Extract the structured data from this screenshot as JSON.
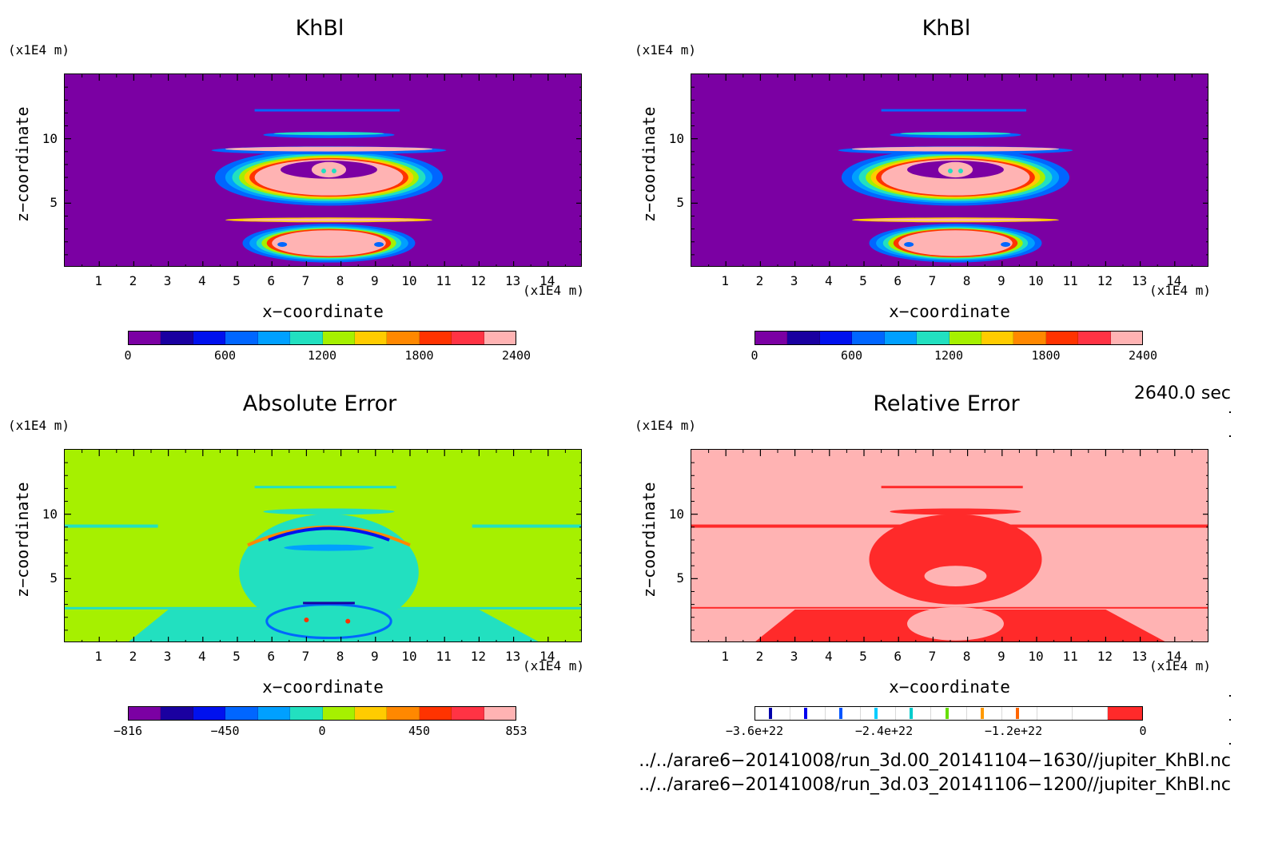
{
  "panels": [
    {
      "title": "KhBl",
      "y_unit": "(x1E4 m)",
      "x_unit": "(x1E4 m)",
      "ylabel": "z−coordinate",
      "xlabel": "x−coordinate",
      "kind": "field",
      "colorbar": {
        "colors": [
          "#7b00a3",
          "#1a00a0",
          "#0011ee",
          "#0066ff",
          "#00a0ff",
          "#22e0c0",
          "#a6f000",
          "#ffcc00",
          "#ff8800",
          "#ff3300",
          "#ff3344",
          "#ffb3b3"
        ],
        "ticks": [
          "0",
          "600",
          "1200",
          "1800",
          "2400"
        ]
      }
    },
    {
      "title": "KhBl",
      "y_unit": "(x1E4 m)",
      "x_unit": "(x1E4 m)",
      "ylabel": "z−coordinate",
      "xlabel": "x−coordinate",
      "kind": "field",
      "colorbar": {
        "colors": [
          "#7b00a3",
          "#1a00a0",
          "#0011ee",
          "#0066ff",
          "#00a0ff",
          "#22e0c0",
          "#a6f000",
          "#ffcc00",
          "#ff8800",
          "#ff3300",
          "#ff3344",
          "#ffb3b3"
        ],
        "ticks": [
          "0",
          "600",
          "1200",
          "1800",
          "2400"
        ]
      }
    },
    {
      "title": "Absolute Error",
      "y_unit": "(x1E4 m)",
      "x_unit": "(x1E4 m)",
      "ylabel": "z−coordinate",
      "xlabel": "x−coordinate",
      "kind": "abserr",
      "colorbar": {
        "colors": [
          "#7b00a3",
          "#1a00a0",
          "#0011ee",
          "#0066ff",
          "#00a0ff",
          "#22e0c0",
          "#a6f000",
          "#ffcc00",
          "#ff8800",
          "#ff3300",
          "#ff3344",
          "#ffb3b3"
        ],
        "ticks": [
          "−816",
          "−450",
          "0",
          "450",
          "853"
        ]
      }
    },
    {
      "title": "Relative Error",
      "y_unit": "(x1E4 m)",
      "x_unit": "(x1E4 m)",
      "ylabel": "z−coordinate",
      "xlabel": "x−coordinate",
      "kind": "relerr",
      "colorbar": {
        "colors": [
          "#ffffff",
          "#ffffff",
          "#ffffff",
          "#ffffff",
          "#ffffff",
          "#ffffff",
          "#ffffff",
          "#ffffff",
          "#ffffff",
          "#ffffff",
          "#ff2a2a"
        ],
        "marks": [
          "#0000aa",
          "#0000ee",
          "#0055ff",
          "#00ccff",
          "#00cccc",
          "#66dd00",
          "#ff9900",
          "#ff6600"
        ],
        "ticks": [
          "−3.6e+22",
          "−2.4e+22",
          "−1.2e+22",
          "0"
        ]
      }
    }
  ],
  "chart_data": {
    "type": "heatmap",
    "x_ticks": [
      1,
      2,
      3,
      4,
      5,
      6,
      7,
      8,
      9,
      10,
      11,
      12,
      13,
      14
    ],
    "y_ticks": [
      5,
      10
    ],
    "xlim": [
      0,
      15
    ],
    "ylim": [
      0,
      15
    ],
    "x_unit": "(x1E4 m)",
    "y_unit": "(x1E4 m)"
  },
  "footer": {
    "time": "2640.0 sec",
    "file1": "../../arare6−20141008/run_3d.00_20141104−1630//jupiter_KhBl.nc",
    "file2": "../../arare6−20141008/run_3d.03_20141106−1200//jupiter_KhBl.nc"
  }
}
